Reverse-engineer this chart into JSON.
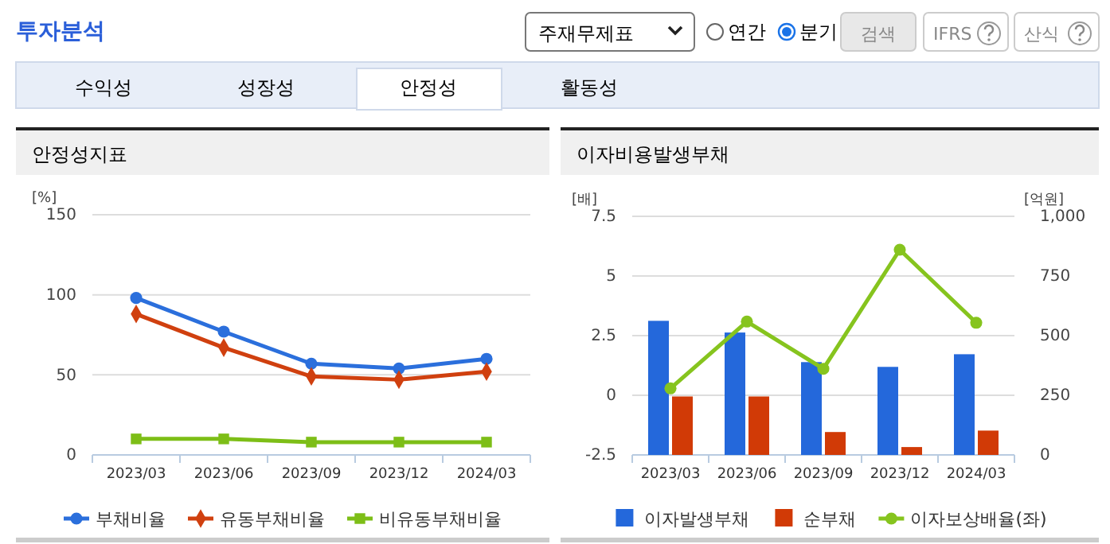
{
  "chart_data": [
    {
      "type": "other",
      "annotations": [
        "투자분석",
        "주재무제표",
        "연간",
        "분기",
        "검색",
        "IFRS",
        "산식",
        "수익성",
        "성장성",
        "안정성",
        "활동성"
      ]
    },
    {
      "type": "line",
      "title": "안정성지표",
      "ylabel": "[%]",
      "categories": [
        "2023/03",
        "2023/06",
        "2023/09",
        "2023/12",
        "2024/03"
      ],
      "ylim": [
        0,
        150
      ],
      "yticks": [
        0,
        50,
        100,
        150
      ],
      "grid": "y",
      "legend": "bottom",
      "series": [
        {
          "name": "부채비율",
          "color": "#2b6fdc",
          "marker": "circle",
          "values": [
            98,
            77,
            57,
            54,
            60
          ]
        },
        {
          "name": "유동부채비율",
          "color": "#d0400f",
          "marker": "diamond",
          "values": [
            88,
            67,
            49,
            47,
            52
          ]
        },
        {
          "name": "비유동부채비율",
          "color": "#7dbe17",
          "marker": "square",
          "values": [
            10,
            10,
            8,
            8,
            8
          ]
        }
      ]
    },
    {
      "type": "bar",
      "title": "이자비용발생부채",
      "ylabel": "[배]",
      "y2label": "[억원]",
      "categories": [
        "2023/03",
        "2023/06",
        "2023/09",
        "2023/12",
        "2024/03"
      ],
      "ylim": [
        -2.5,
        7.5
      ],
      "yticks": [
        -2.5,
        0,
        2.5,
        5,
        7.5
      ],
      "y2lim": [
        0,
        1000
      ],
      "y2ticks": [
        0,
        250,
        500,
        750,
        {
          "value": 1000,
          "label": "1,000"
        }
      ],
      "grid": "y",
      "legend": "bottom",
      "series": [
        {
          "name": "이자발생부채",
          "color": "#2468db",
          "axis": "y2",
          "values": [
            562,
            513,
            389,
            369,
            422
          ]
        },
        {
          "name": "순부채",
          "color": "#d13a06",
          "axis": "y2",
          "values": [
            245,
            245,
            96,
            33,
            102
          ]
        },
        {
          "name": "이자보상배율(좌)",
          "type": "line",
          "color": "#86c41e",
          "marker": "circle",
          "values": [
            0.29,
            3.09,
            1.11,
            6.1,
            3.04
          ]
        }
      ]
    }
  ]
}
